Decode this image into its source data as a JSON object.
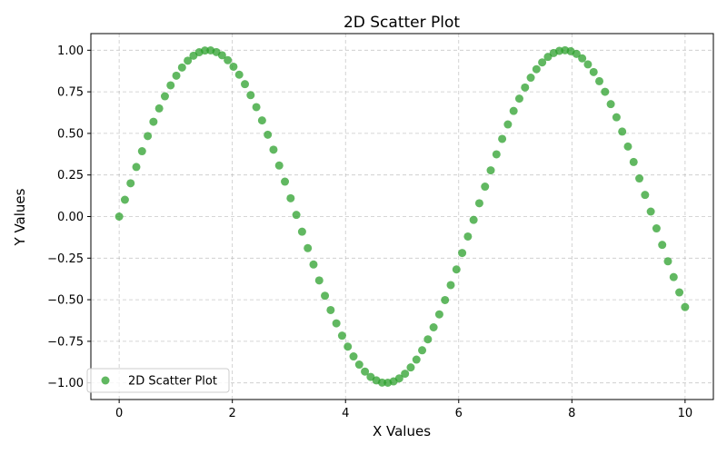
{
  "chart_data": {
    "type": "scatter",
    "title": "2D Scatter Plot",
    "xlabel": "X Values",
    "ylabel": "Y Values",
    "xlim": [
      -0.5,
      10.5
    ],
    "ylim": [
      -1.1,
      1.1
    ],
    "xticks": [
      0,
      2,
      4,
      6,
      8,
      10
    ],
    "xtick_labels": [
      "0",
      "2",
      "4",
      "6",
      "8",
      "10"
    ],
    "yticks": [
      -1.0,
      -0.75,
      -0.5,
      -0.25,
      0.0,
      0.25,
      0.5,
      0.75,
      1.0
    ],
    "ytick_labels": [
      "−1.00",
      "−0.75",
      "−0.50",
      "−0.25",
      "0.00",
      "0.25",
      "0.50",
      "0.75",
      "1.00"
    ],
    "grid": true,
    "legend_position": "lower-left",
    "series": [
      {
        "name": "2D Scatter Plot",
        "color": "#2ca02c",
        "x": [
          0.0,
          0.101,
          0.202,
          0.303,
          0.404,
          0.505,
          0.606,
          0.707,
          0.808,
          0.909,
          1.01,
          1.111,
          1.212,
          1.313,
          1.414,
          1.515,
          1.616,
          1.717,
          1.818,
          1.919,
          2.02,
          2.121,
          2.222,
          2.323,
          2.424,
          2.525,
          2.626,
          2.727,
          2.828,
          2.929,
          3.03,
          3.131,
          3.232,
          3.333,
          3.434,
          3.535,
          3.636,
          3.737,
          3.838,
          3.939,
          4.04,
          4.141,
          4.242,
          4.343,
          4.444,
          4.545,
          4.646,
          4.747,
          4.848,
          4.949,
          5.051,
          5.152,
          5.253,
          5.354,
          5.455,
          5.556,
          5.657,
          5.758,
          5.859,
          5.96,
          6.061,
          6.162,
          6.263,
          6.364,
          6.465,
          6.566,
          6.667,
          6.768,
          6.869,
          6.97,
          7.071,
          7.172,
          7.273,
          7.374,
          7.475,
          7.576,
          7.677,
          7.778,
          7.879,
          7.98,
          8.081,
          8.182,
          8.283,
          8.384,
          8.485,
          8.586,
          8.687,
          8.788,
          8.889,
          8.99,
          9.091,
          9.192,
          9.293,
          9.394,
          9.495,
          9.596,
          9.697,
          9.798,
          9.899,
          10.0
        ],
        "y": [
          0.0,
          0.101,
          0.2,
          0.298,
          0.393,
          0.484,
          0.57,
          0.65,
          0.723,
          0.789,
          0.847,
          0.896,
          0.937,
          0.967,
          0.988,
          0.998,
          0.999,
          0.989,
          0.97,
          0.94,
          0.901,
          0.853,
          0.796,
          0.73,
          0.658,
          0.578,
          0.492,
          0.402,
          0.307,
          0.21,
          0.11,
          0.01,
          -0.091,
          -0.19,
          -0.288,
          -0.384,
          -0.476,
          -0.562,
          -0.642,
          -0.716,
          -0.782,
          -0.841,
          -0.89,
          -0.932,
          -0.964,
          -0.985,
          -0.998,
          -0.999,
          -0.991,
          -0.973,
          -0.945,
          -0.907,
          -0.86,
          -0.804,
          -0.738,
          -0.666,
          -0.588,
          -0.502,
          -0.412,
          -0.318,
          -0.219,
          -0.12,
          -0.02,
          0.08,
          0.18,
          0.278,
          0.374,
          0.467,
          0.554,
          0.635,
          0.709,
          0.776,
          0.835,
          0.886,
          0.927,
          0.96,
          0.983,
          0.996,
          1.0,
          0.994,
          0.978,
          0.951,
          0.915,
          0.869,
          0.814,
          0.75,
          0.676,
          0.597,
          0.511,
          0.421,
          0.328,
          0.229,
          0.13,
          0.03,
          -0.071,
          -0.17,
          -0.269,
          -0.364,
          -0.456,
          -0.544
        ]
      }
    ]
  }
}
